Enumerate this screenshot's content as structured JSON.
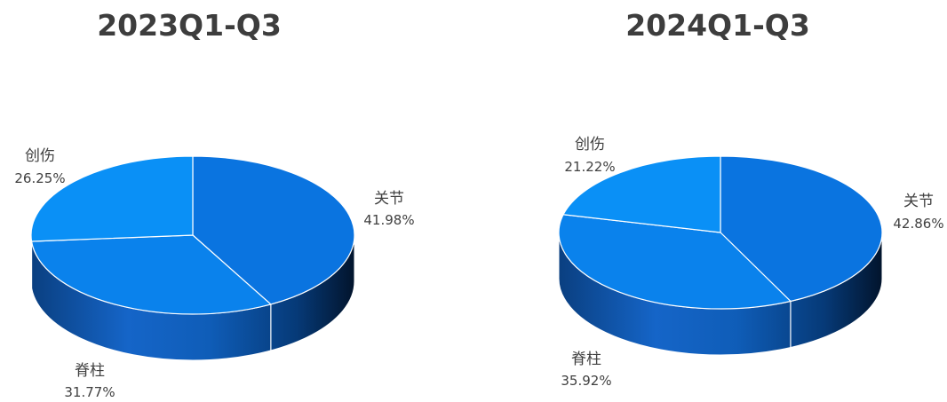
{
  "chart_data": [
    {
      "type": "pie",
      "style": "3d",
      "title": "2023Q1-Q3",
      "slices": [
        {
          "label": "关节",
          "value": 41.98,
          "display": "41.98%"
        },
        {
          "label": "脊柱",
          "value": 31.77,
          "display": "31.77%"
        },
        {
          "label": "创伤",
          "value": 26.25,
          "display": "26.25%"
        }
      ],
      "colors": [
        "#0a74e0",
        "#0a82ec",
        "#0a90f6"
      ]
    },
    {
      "type": "pie",
      "style": "3d",
      "title": "2024Q1-Q3",
      "slices": [
        {
          "label": "关节",
          "value": 42.86,
          "display": "42.86%"
        },
        {
          "label": "脊柱",
          "value": 35.92,
          "display": "35.92%"
        },
        {
          "label": "创伤",
          "value": 21.22,
          "display": "21.22%"
        }
      ],
      "colors": [
        "#0a74e0",
        "#0a82ec",
        "#0a90f6"
      ]
    }
  ]
}
